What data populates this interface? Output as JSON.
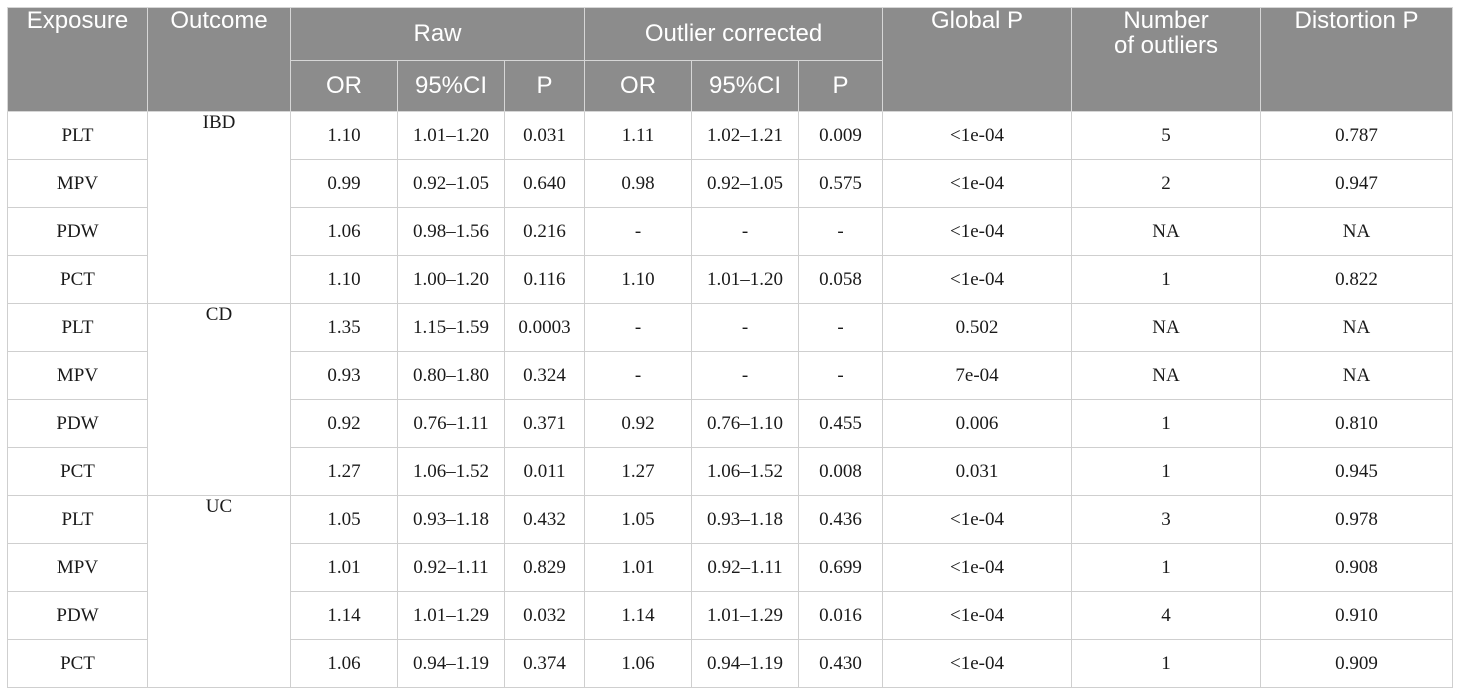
{
  "table": {
    "headers": {
      "exposure": "Exposure",
      "outcome": "Outcome",
      "raw": "Raw",
      "outlier_corrected": "Outlier corrected",
      "global_p": "Global P",
      "number_of_outliers_line1": "Number",
      "number_of_outliers_line2": "of outliers",
      "distortion_p": "Distortion P",
      "or": "OR",
      "ci": "95%CI",
      "p": "P"
    },
    "rows": [
      {
        "exposure": "PLT",
        "outcome": "IBD",
        "raw_or": "1.10",
        "raw_ci": "1.01–1.20",
        "raw_p": "0.031",
        "oc_or": "1.11",
        "oc_ci": "1.02–1.21",
        "oc_p": "0.009",
        "global_p": "<1e-04",
        "n_outliers": "5",
        "distortion_p": "0.787"
      },
      {
        "exposure": "MPV",
        "raw_or": "0.99",
        "raw_ci": "0.92–1.05",
        "raw_p": "0.640",
        "oc_or": "0.98",
        "oc_ci": "0.92–1.05",
        "oc_p": "0.575",
        "global_p": "<1e-04",
        "n_outliers": "2",
        "distortion_p": "0.947"
      },
      {
        "exposure": "PDW",
        "raw_or": "1.06",
        "raw_ci": "0.98–1.56",
        "raw_p": "0.216",
        "oc_or": "-",
        "oc_ci": "-",
        "oc_p": "-",
        "global_p": "<1e-04",
        "n_outliers": "NA",
        "distortion_p": "NA"
      },
      {
        "exposure": "PCT",
        "raw_or": "1.10",
        "raw_ci": "1.00–1.20",
        "raw_p": "0.116",
        "oc_or": "1.10",
        "oc_ci": "1.01–1.20",
        "oc_p": "0.058",
        "global_p": "<1e-04",
        "n_outliers": "1",
        "distortion_p": "0.822"
      },
      {
        "exposure": "PLT",
        "outcome": "CD",
        "raw_or": "1.35",
        "raw_ci": "1.15–1.59",
        "raw_p": "0.0003",
        "oc_or": "-",
        "oc_ci": "-",
        "oc_p": "-",
        "global_p": "0.502",
        "n_outliers": "NA",
        "distortion_p": "NA"
      },
      {
        "exposure": "MPV",
        "raw_or": "0.93",
        "raw_ci": "0.80–1.80",
        "raw_p": "0.324",
        "oc_or": "-",
        "oc_ci": "-",
        "oc_p": "-",
        "global_p": "7e-04",
        "n_outliers": "NA",
        "distortion_p": "NA"
      },
      {
        "exposure": "PDW",
        "raw_or": "0.92",
        "raw_ci": "0.76–1.11",
        "raw_p": "0.371",
        "oc_or": "0.92",
        "oc_ci": "0.76–1.10",
        "oc_p": "0.455",
        "global_p": "0.006",
        "n_outliers": "1",
        "distortion_p": "0.810"
      },
      {
        "exposure": "PCT",
        "raw_or": "1.27",
        "raw_ci": "1.06–1.52",
        "raw_p": "0.011",
        "oc_or": "1.27",
        "oc_ci": "1.06–1.52",
        "oc_p": "0.008",
        "global_p": "0.031",
        "n_outliers": "1",
        "distortion_p": "0.945"
      },
      {
        "exposure": "PLT",
        "outcome": "UC",
        "raw_or": "1.05",
        "raw_ci": "0.93–1.18",
        "raw_p": "0.432",
        "oc_or": "1.05",
        "oc_ci": "0.93–1.18",
        "oc_p": "0.436",
        "global_p": "<1e-04",
        "n_outliers": "3",
        "distortion_p": "0.978"
      },
      {
        "exposure": "MPV",
        "raw_or": "1.01",
        "raw_ci": "0.92–1.11",
        "raw_p": "0.829",
        "oc_or": "1.01",
        "oc_ci": "0.92–1.11",
        "oc_p": "0.699",
        "global_p": "<1e-04",
        "n_outliers": "1",
        "distortion_p": "0.908"
      },
      {
        "exposure": "PDW",
        "raw_or": "1.14",
        "raw_ci": "1.01–1.29",
        "raw_p": "0.032",
        "oc_or": "1.14",
        "oc_ci": "1.01–1.29",
        "oc_p": "0.016",
        "global_p": "<1e-04",
        "n_outliers": "4",
        "distortion_p": "0.910"
      },
      {
        "exposure": "PCT",
        "raw_or": "1.06",
        "raw_ci": "0.94–1.19",
        "raw_p": "0.374",
        "oc_or": "1.06",
        "oc_ci": "0.94–1.19",
        "oc_p": "0.430",
        "global_p": "<1e-04",
        "n_outliers": "1",
        "distortion_p": "0.909"
      }
    ]
  }
}
